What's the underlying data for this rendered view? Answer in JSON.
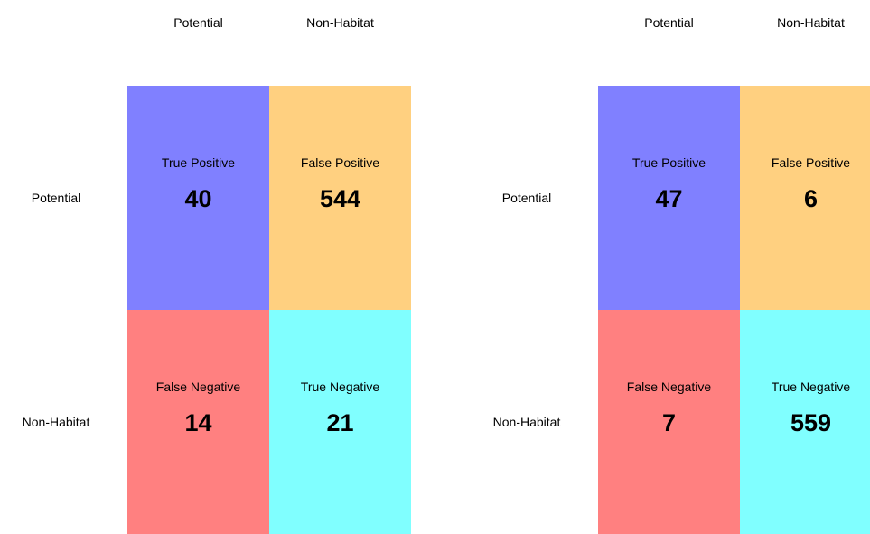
{
  "matrices": [
    {
      "columns": [
        "Potential",
        "Non-Habitat"
      ],
      "rows": [
        "Potential",
        "Non-Habitat"
      ],
      "cells": [
        [
          {
            "label": "True Positive",
            "value": 40
          },
          {
            "label": "False Positive",
            "value": 544
          }
        ],
        [
          {
            "label": "False Negative",
            "value": 14
          },
          {
            "label": "True Negative",
            "value": 21
          }
        ]
      ]
    },
    {
      "columns": [
        "Potential",
        "Non-Habitat"
      ],
      "rows": [
        "Potential",
        "Non-Habitat"
      ],
      "cells": [
        [
          {
            "label": "True Positive",
            "value": 47
          },
          {
            "label": "False Positive",
            "value": 6
          }
        ],
        [
          {
            "label": "False Negative",
            "value": 7
          },
          {
            "label": "True Negative",
            "value": 559
          }
        ]
      ]
    }
  ]
}
